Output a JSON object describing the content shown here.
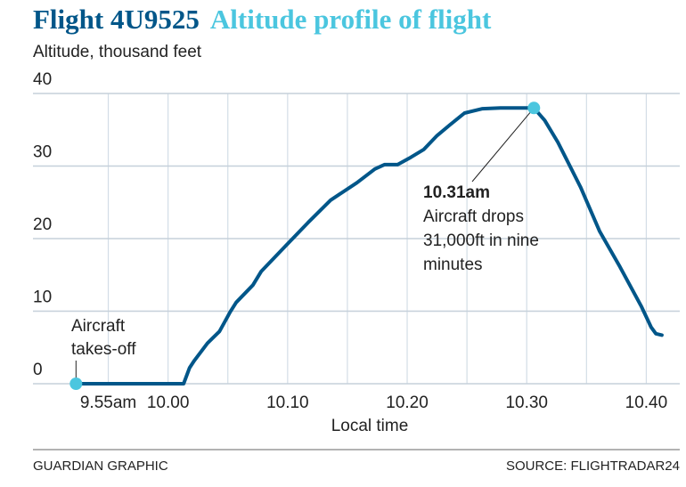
{
  "chart_data": {
    "type": "line",
    "title": "Flight 4U9525",
    "subtitle_title": "Altitude profile of flight",
    "ylabel": "Altitude, thousand feet",
    "xlabel": "Local time",
    "ylim": [
      0,
      40
    ],
    "yticks": [
      0,
      10,
      20,
      30,
      40
    ],
    "x_units": "minutes after 10.00",
    "xlim": [
      -11.3,
      42.8
    ],
    "xticks": [
      {
        "t": -5,
        "label": "9.55am"
      },
      {
        "t": 0,
        "label": "10.00"
      },
      {
        "t": 10,
        "label": "10.10"
      },
      {
        "t": 20,
        "label": "10.20"
      },
      {
        "t": 30,
        "label": "10.30"
      },
      {
        "t": 40,
        "label": "10.40"
      }
    ],
    "gridlines_x": [
      -5,
      0,
      5,
      10,
      15,
      20,
      25,
      30,
      35,
      40
    ],
    "grid": true,
    "series": [
      {
        "name": "Altitude",
        "color": "#005689",
        "points": [
          [
            -7.7,
            0
          ],
          [
            1.3,
            0
          ],
          [
            1.8,
            2.2
          ],
          [
            2.2,
            3.2
          ],
          [
            3.3,
            5.6
          ],
          [
            4.3,
            7.2
          ],
          [
            5.2,
            9.9
          ],
          [
            5.7,
            11.2
          ],
          [
            7.1,
            13.6
          ],
          [
            7.8,
            15.5
          ],
          [
            9.9,
            19.1
          ],
          [
            11.7,
            22.2
          ],
          [
            13.6,
            25.3
          ],
          [
            15.8,
            27.7
          ],
          [
            17.3,
            29.6
          ],
          [
            18.1,
            30.2
          ],
          [
            19.2,
            30.2
          ],
          [
            20.3,
            31.2
          ],
          [
            21.4,
            32.3
          ],
          [
            22.5,
            34.2
          ],
          [
            23.6,
            35.7
          ],
          [
            24.8,
            37.3
          ],
          [
            26.3,
            37.9
          ],
          [
            27.8,
            38
          ],
          [
            30.6,
            38
          ],
          [
            31.5,
            36.3
          ],
          [
            32.6,
            33.3
          ],
          [
            34.5,
            27.1
          ],
          [
            36.1,
            21
          ],
          [
            37.8,
            16.1
          ],
          [
            39.6,
            10.6
          ],
          [
            40.4,
            7.8
          ],
          [
            40.8,
            6.9
          ],
          [
            41.3,
            6.7
          ]
        ]
      }
    ],
    "highlight_color": "#4bc6df",
    "annotations": [
      {
        "t": -7.7,
        "alt": 0,
        "lines": [
          "Aircraft",
          "takes-off"
        ]
      },
      {
        "t": 30.6,
        "alt": 38,
        "heading": "10.31am",
        "lines": [
          "Aircraft drops",
          "31,000ft in nine",
          "minutes"
        ]
      }
    ]
  },
  "footer": {
    "credit": "GUARDIAN GRAPHIC",
    "source": "SOURCE: FLIGHTRADAR24"
  }
}
